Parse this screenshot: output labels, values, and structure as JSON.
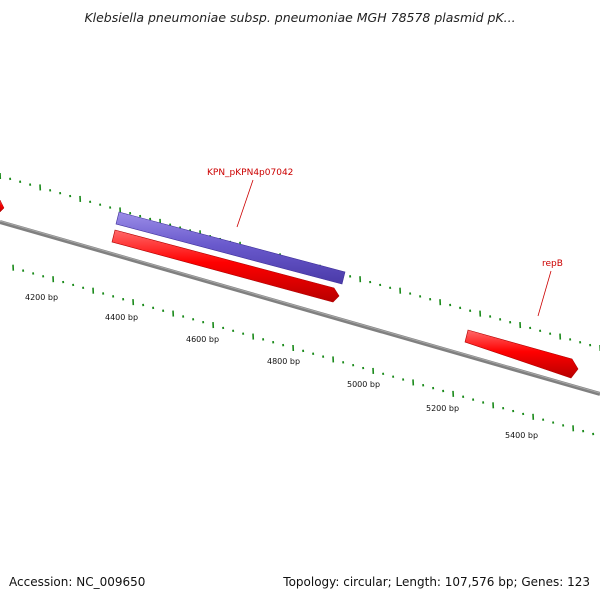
{
  "title": "Klebsiella pneumoniae subsp. pneumoniae MGH 78578 plasmid pK...",
  "footer": {
    "accession": "Accession: NC_009650",
    "summary": "Topology: circular; Length: 107,576 bp; Genes: 123"
  },
  "colors": {
    "backbone": "#808080",
    "tick": "#1a8a1a",
    "forward_gene": "#ff0000",
    "other_feature": "#6a5acd",
    "label": "#cc0000"
  },
  "ticks": {
    "labels": [
      "4200 bp",
      "4400 bp",
      "4600 bp",
      "4800 bp",
      "5000 bp",
      "5200 bp",
      "5400 bp"
    ]
  },
  "features": [
    {
      "name": "KPN_pKPN4p07042",
      "labeled": true
    },
    {
      "name": "repB",
      "labeled": true
    }
  ]
}
